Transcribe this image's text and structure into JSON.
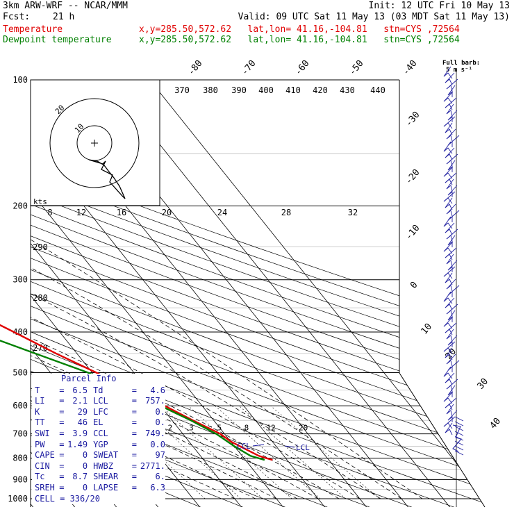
{
  "header": {
    "model": "3km ARW-WRF -- NCAR/MMM",
    "init": "Init: 12 UTC Fri 10 May 13",
    "fcst_label": "Fcst:",
    "fcst_value": "21 h",
    "valid": "Valid: 09 UTC Sat 11 May 13 (03 MDT Sat 11 May 13)",
    "temp_name": "Temperature",
    "dew_name": "Dewpoint temperature",
    "temp_loc": "x,y=285.50,572.62   lat,lon= 41.16,-104.81   stn=CYS ,72564",
    "dew_loc": "x,y=285.50,572.62   lat,lon= 41.16,-104.81   stn=CYS ,72564"
  },
  "colors": {
    "temperature": "#e00000",
    "dewpoint": "#008000",
    "text_blue": "#1a1aa0",
    "wind": "#2020a0"
  },
  "chart_data": {
    "type": "line",
    "subtype": "skew-T log-P sounding",
    "pressure_levels": [
      100,
      200,
      300,
      400,
      500,
      600,
      700,
      800,
      900,
      1000
    ],
    "isotherm_labels": [
      "-80",
      "-70",
      "-60",
      "-50",
      "-40",
      "-30",
      "-20",
      "-10",
      "0",
      "10",
      "20",
      "30",
      "40"
    ],
    "theta_labels": [
      "370",
      "380",
      "390",
      "400",
      "410",
      "420",
      "430",
      "440",
      "290",
      "280",
      "270"
    ],
    "mixing_ratio_labels": [
      "2",
      "3",
      "5",
      "8",
      "12",
      "20"
    ],
    "series": [
      {
        "name": "Temperature",
        "points": [
          {
            "p": 100,
            "t": -55
          },
          {
            "p": 115,
            "t": -56
          },
          {
            "p": 130,
            "t": -58
          },
          {
            "p": 150,
            "t": -60
          },
          {
            "p": 175,
            "t": -62
          },
          {
            "p": 200,
            "t": -62
          },
          {
            "p": 250,
            "t": -53
          },
          {
            "p": 300,
            "t": -45
          },
          {
            "p": 350,
            "t": -38
          },
          {
            "p": 400,
            "t": -31
          },
          {
            "p": 450,
            "t": -25
          },
          {
            "p": 500,
            "t": -19
          },
          {
            "p": 550,
            "t": -14
          },
          {
            "p": 600,
            "t": -9
          },
          {
            "p": 650,
            "t": -5
          },
          {
            "p": 700,
            "t": -1
          },
          {
            "p": 730,
            "t": 0
          },
          {
            "p": 760,
            "t": 2
          },
          {
            "p": 790,
            "t": 4
          },
          {
            "p": 808,
            "t": 6.5
          }
        ]
      },
      {
        "name": "Dewpoint temperature",
        "points": [
          {
            "p": 100,
            "t": -77
          },
          {
            "p": 130,
            "t": -79
          },
          {
            "p": 160,
            "t": -80
          },
          {
            "p": 200,
            "t": -80
          },
          {
            "p": 250,
            "t": -83
          },
          {
            "p": 270,
            "t": -82
          },
          {
            "p": 300,
            "t": -72
          },
          {
            "p": 350,
            "t": -58
          },
          {
            "p": 400,
            "t": -40
          },
          {
            "p": 450,
            "t": -30
          },
          {
            "p": 500,
            "t": -21
          },
          {
            "p": 550,
            "t": -15
          },
          {
            "p": 600,
            "t": -10
          },
          {
            "p": 650,
            "t": -5.5
          },
          {
            "p": 700,
            "t": -2
          },
          {
            "p": 750,
            "t": 0
          },
          {
            "p": 790,
            "t": 2
          },
          {
            "p": 808,
            "t": 4.6
          }
        ]
      }
    ],
    "hodograph": {
      "units": "kts",
      "speed_axis_labels": [
        "8",
        "12",
        "16",
        "20",
        "24",
        "28",
        "32"
      ],
      "ring_labels": [
        "10",
        "20"
      ]
    },
    "wind_profile": {
      "title": "Full barb:",
      "subtitle": "5 m s⁻¹"
    }
  },
  "parcel_info": {
    "title": "Parcel Info",
    "rows": [
      {
        "k1": "T",
        "v1": "6.5",
        "k2": "Td",
        "v2": "4.6"
      },
      {
        "k1": "LI",
        "v1": "2.1",
        "k2": "LCL",
        "v2": "757."
      },
      {
        "k1": "K",
        "v1": "29",
        "k2": "LFC",
        "v2": "0."
      },
      {
        "k1": "TT",
        "v1": "46",
        "k2": "EL",
        "v2": "0."
      },
      {
        "k1": "SWI",
        "v1": "3.9",
        "k2": "CCL",
        "v2": "749."
      },
      {
        "k1": "PW",
        "v1": "1.49",
        "k2": "YGP",
        "v2": "0.0"
      },
      {
        "k1": "CAPE",
        "v1": "0",
        "k2": "SWEAT",
        "v2": "97"
      },
      {
        "k1": "CIN",
        "v1": "0",
        "k2": "HWBZ",
        "v2": "2771."
      },
      {
        "k1": "Tc",
        "v1": "8.7",
        "k2": "SHEAR",
        "v2": "6."
      },
      {
        "k1": "SREH",
        "v1": "0",
        "k2": "LAPSE",
        "v2": "6.3"
      }
    ],
    "cell": "CELL = 336/20"
  },
  "annotations": {
    "ccl": "CCL",
    "lcl": "LCL"
  }
}
